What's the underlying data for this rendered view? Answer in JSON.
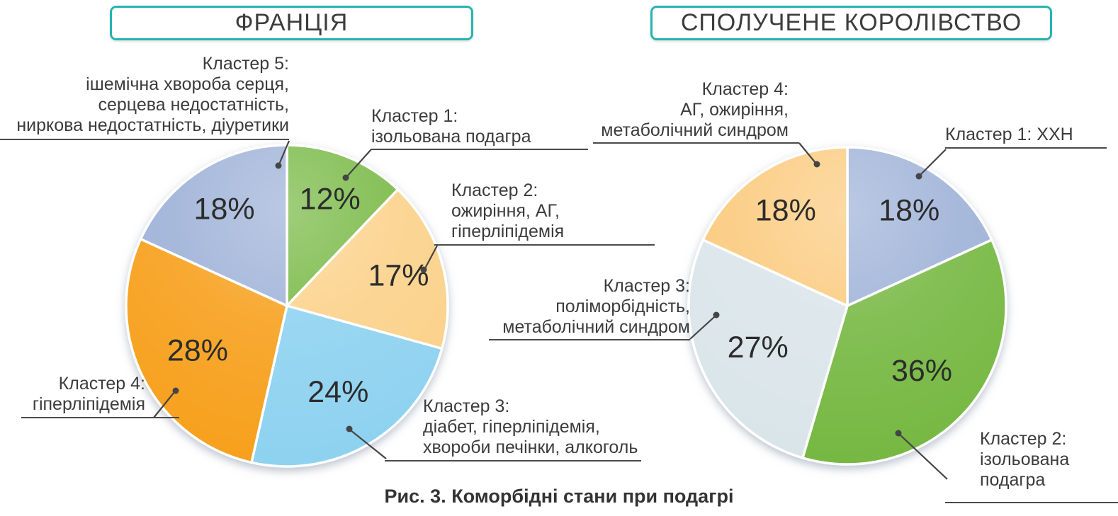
{
  "figure": {
    "caption": "Рис. 3. Коморбідні стани при подагрі",
    "accent_color": "#27b3b0",
    "text_color": "#3c3c3c"
  },
  "chart_data": [
    {
      "type": "pie",
      "title": "ФРАНЦІЯ",
      "categories": [
        "Кластер 1: ізольована подагра",
        "Кластер 2: ожиріння, АГ, гіперліпідемія",
        "Кластер 3: діабет, гіперліпідемія, хвороби печінки, алкоголь",
        "Кластер 4: гіперліпідемія",
        "Кластер 5: ішемічна хвороба серця, серцева недостатність, ниркова недостатність, діуретики"
      ],
      "values": [
        12,
        17,
        24,
        28,
        18
      ],
      "data_labels": [
        "12%",
        "17%",
        "24%",
        "28%",
        "18%"
      ],
      "colors": [
        "#76b843",
        "#fbd189",
        "#8ed2f0",
        "#f7a01f",
        "#9db1d7"
      ],
      "legend_position": "callouts",
      "callouts": [
        "Кластер 1:\nізольована подагра",
        "Кластер 2:\nожиріння, АГ,\nгіперліпідемія",
        "Кластер 3:\nдіабет, гіперліпідемія,\nхвороби печінки, алкоголь",
        "Кластер 4:\nгіперліпідемія",
        "Кластер 5:\nішемічна хвороба серця,\nсерцева недостатність,\nниркова недостатність, діуретики"
      ]
    },
    {
      "type": "pie",
      "title": "СПОЛУЧЕНЕ КОРОЛІВСТВО",
      "categories": [
        "Кластер 1: ХХН",
        "Кластер 2: ізольована подагра",
        "Кластер 3: поліморбідність, метаболічний синдром",
        "Кластер 4: АГ, ожиріння, метаболічний синдром"
      ],
      "values": [
        18,
        36,
        27,
        18
      ],
      "data_labels": [
        "18%",
        "36%",
        "27%",
        "18%"
      ],
      "colors": [
        "#9db1d7",
        "#76b843",
        "#dae5ea",
        "#fbca7d"
      ],
      "legend_position": "callouts",
      "callouts": [
        "Кластер 1: ХХН",
        "Кластер 2:\nізольована подагра",
        "Кластер 3:\nполіморбідність,\nметаболічний синдром",
        "Кластер 4:\nАГ, ожиріння,\nметаболічний синдром"
      ]
    }
  ]
}
